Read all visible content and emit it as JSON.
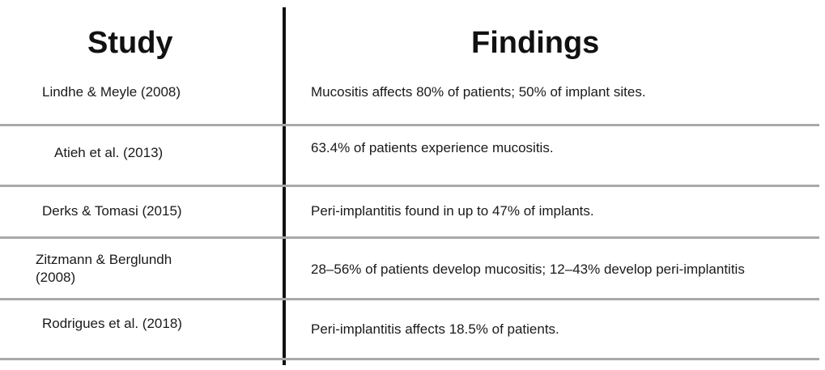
{
  "table": {
    "headers": {
      "study": "Study",
      "findings": "Findings"
    },
    "rows": [
      {
        "study": "Lindhe & Meyle (2008)",
        "findings": "Mucositis affects 80% of patients; 50% of implant sites."
      },
      {
        "study": "Atieh et al. (2013)",
        "findings": "63.4% of patients experience mucositis."
      },
      {
        "study": "Derks & Tomasi (2015)",
        "findings": "Peri-implantitis found in up to 47% of implants."
      },
      {
        "study": "Zitzmann & Berglundh (2008)",
        "findings": "28–56% of patients develop mucositis; 12–43% develop peri-implantitis"
      },
      {
        "study": "Rodrigues et al. (2018)",
        "findings": "Peri-implantitis affects 18.5% of patients."
      }
    ]
  }
}
